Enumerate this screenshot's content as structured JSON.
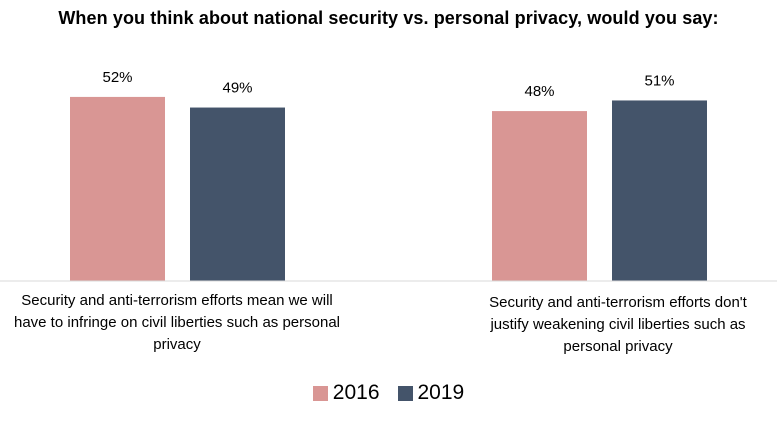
{
  "chart_data": {
    "type": "bar",
    "title": "When you think about national security vs. personal privacy, would you say:",
    "categories": [
      "Security and anti-terrorism efforts mean we will have to infringe on civil liberties such as personal privacy",
      "Security and anti-terrorism efforts don't justify weakening civil liberties such as personal privacy"
    ],
    "series": [
      {
        "name": "2016",
        "values": [
          52,
          48
        ],
        "labels": [
          "52%",
          "48%"
        ],
        "color": "#d99694"
      },
      {
        "name": "2019",
        "values": [
          49,
          51
        ],
        "labels": [
          "49%",
          "51%"
        ],
        "color": "#44546a"
      }
    ],
    "xlabel": "",
    "ylabel": "",
    "ylim": [
      0,
      60
    ],
    "grid": false,
    "legend_position": "bottom"
  }
}
